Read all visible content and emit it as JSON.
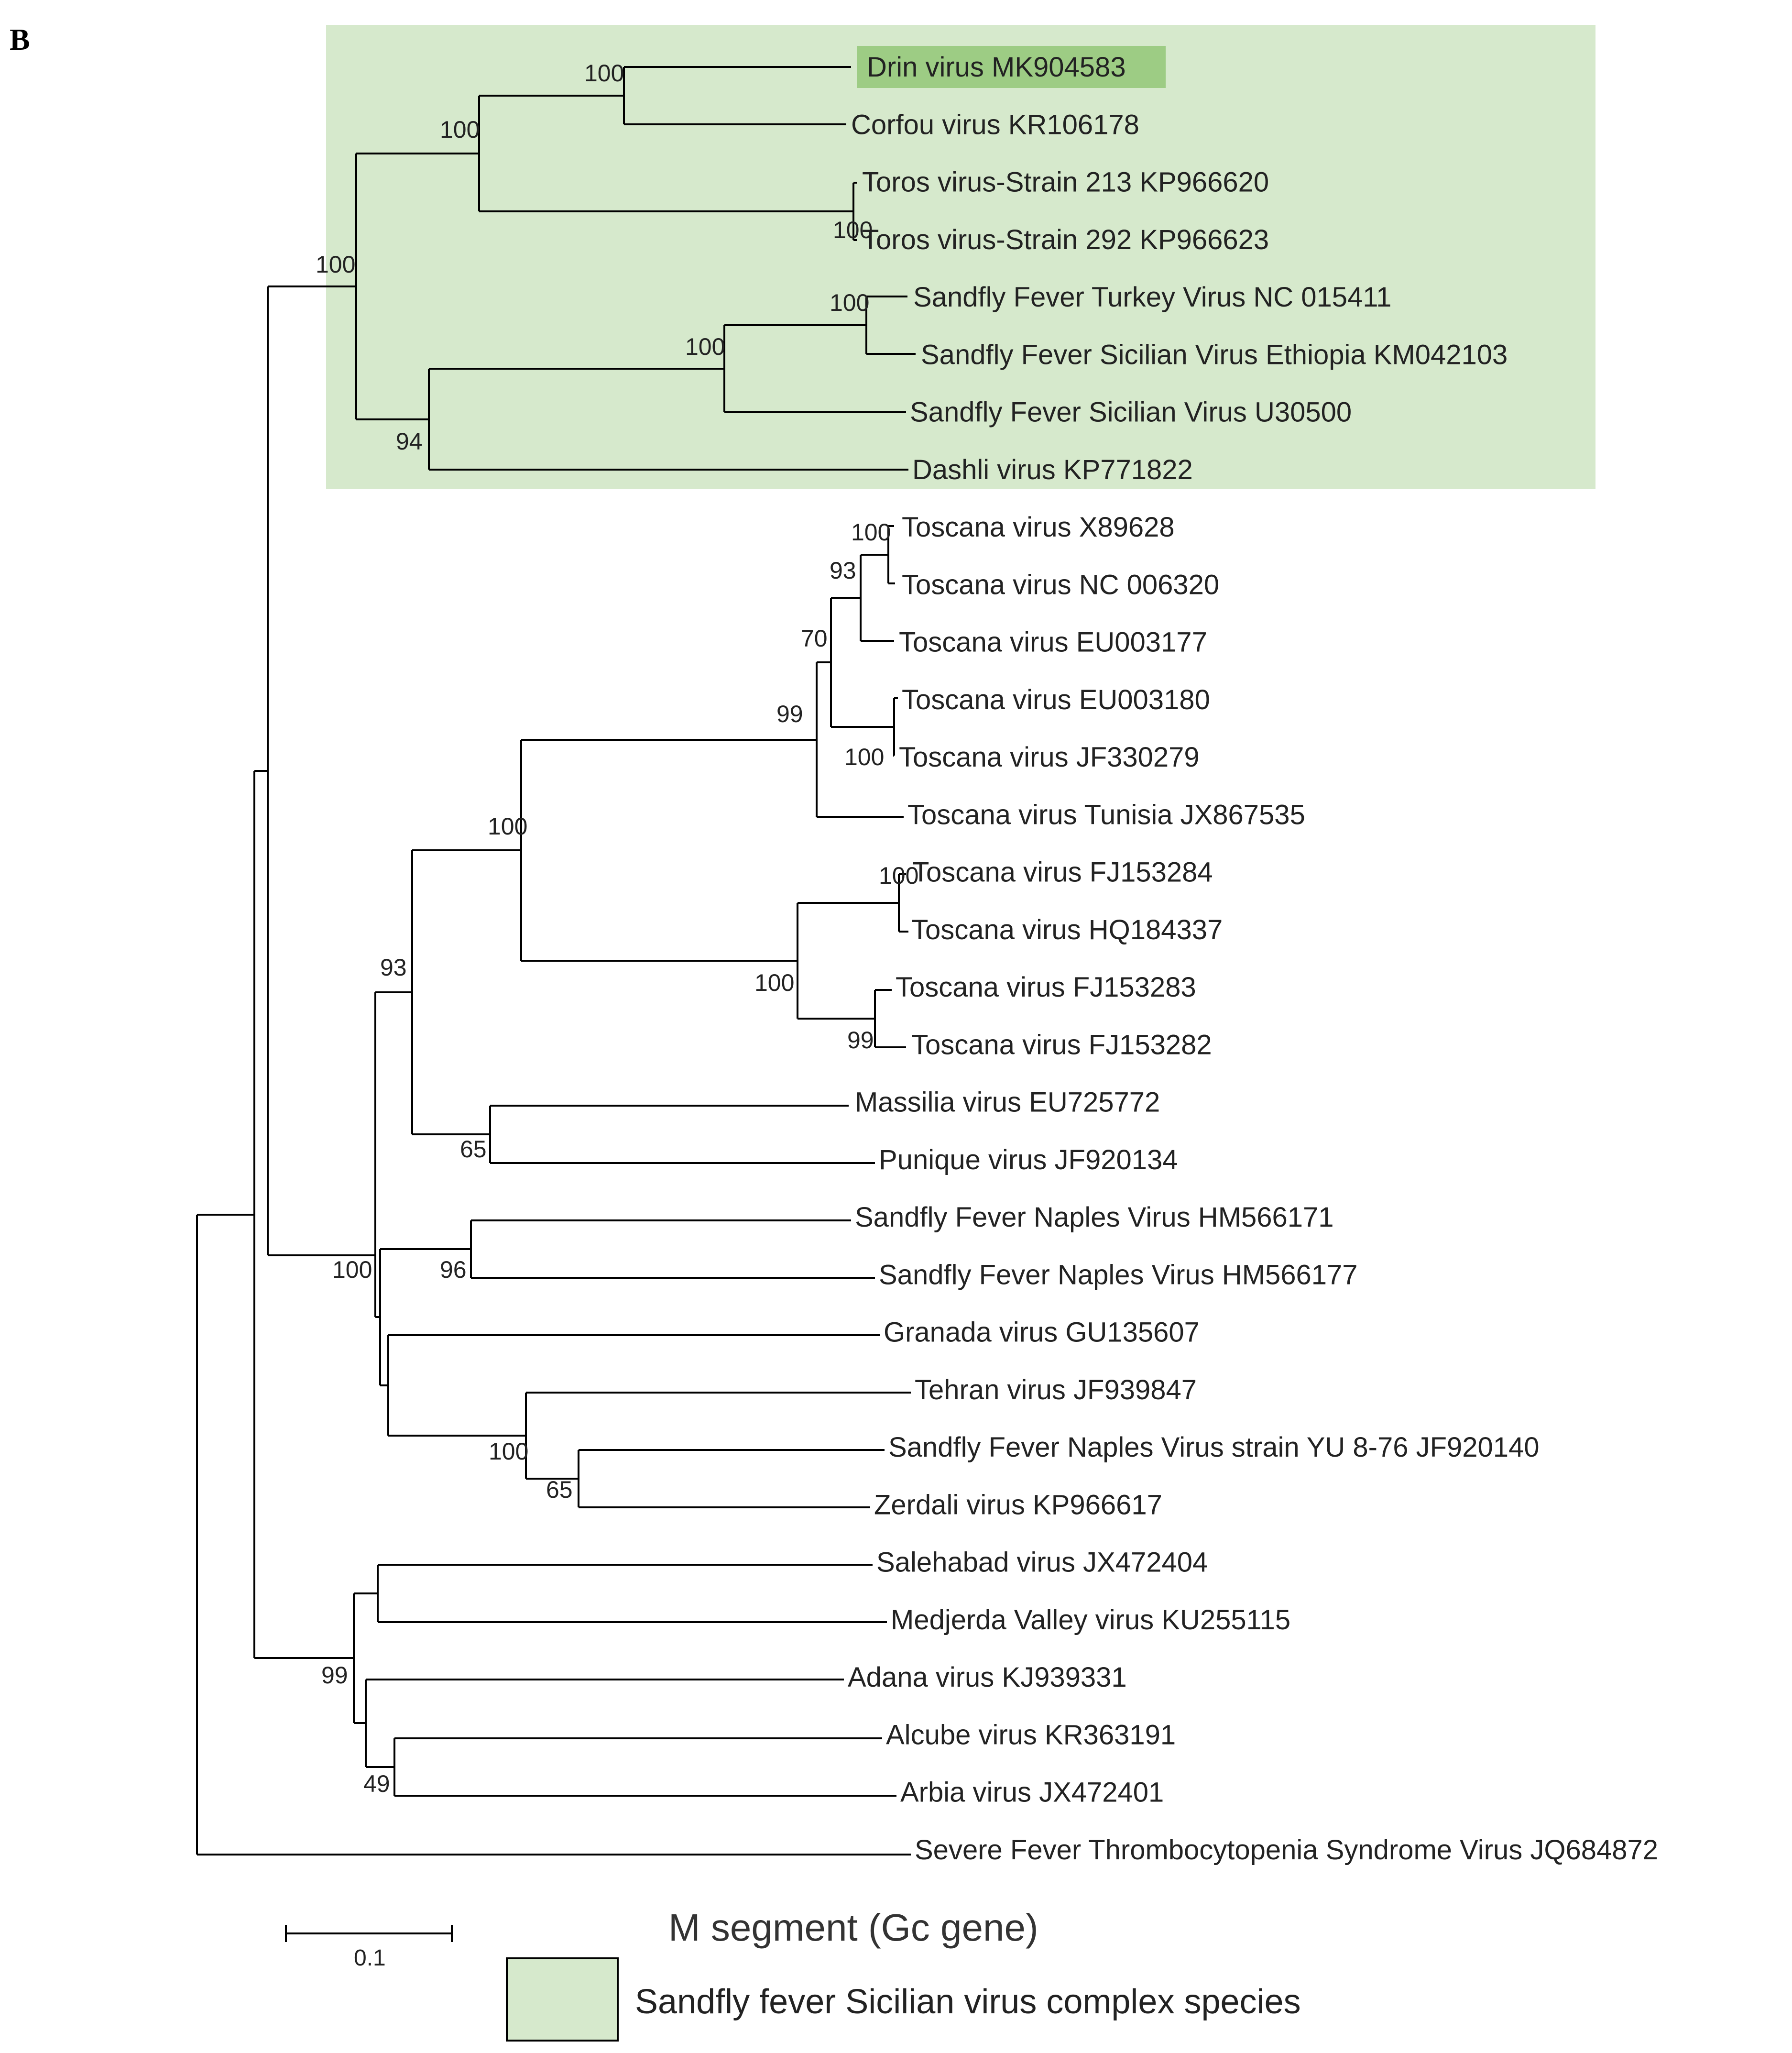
{
  "panel_letter": "B",
  "caption": "M segment (Gc gene)",
  "scale_bar": {
    "value": 0.1,
    "label": "0.1"
  },
  "legend": {
    "label": "Sandfly fever Sicilian virus complex species",
    "color": "#d6e9cc"
  },
  "colors": {
    "highlight_region": "#d6e9cc",
    "highlight_leaf": "#9dcc84",
    "branch": "#000000"
  },
  "leaves": [
    "Drin virus MK904583",
    "Corfou virus KR106178",
    "Toros virus-Strain 213 KP966620",
    "Toros virus-Strain 292 KP966623",
    "Sandfly Fever Turkey Virus NC 015411",
    "Sandfly Fever Sicilian Virus Ethiopia KM042103",
    "Sandfly Fever Sicilian Virus U30500",
    "Dashli virus KP771822",
    "Toscana virus X89628",
    "Toscana virus NC 006320",
    "Toscana virus EU003177",
    "Toscana virus EU003180",
    "Toscana virus JF330279",
    "Toscana virus Tunisia JX867535",
    "Toscana virus FJ153284",
    "Toscana virus HQ184337",
    "Toscana virus FJ153283",
    "Toscana virus FJ153282",
    "Massilia virus EU725772",
    "Punique virus JF920134",
    "Sandfly Fever Naples Virus HM566171",
    "Sandfly Fever Naples Virus HM566177",
    "Granada virus GU135607",
    "Tehran virus JF939847",
    "Sandfly Fever Naples Virus strain YU 8-76 JF920140",
    "Zerdali virus KP966617",
    "Salehabad virus JX472404",
    "Medjerda Valley virus KU255115",
    "Adana virus KJ939331",
    "Alcube virus KR363191",
    "Arbia virus JX472401",
    "Severe Fever Thrombocytopenia Syndrome Virus JQ684872"
  ],
  "bootstrap_values": [
    "100",
    "100",
    "100",
    "100",
    "100",
    "100",
    "94",
    "100",
    "93",
    "70",
    "99",
    "100",
    "100",
    "100",
    "100",
    "99",
    "93",
    "65",
    "96",
    "100",
    "65",
    "100",
    "99",
    "49"
  ],
  "highlighted_clade": "Sandfly fever Sicilian virus complex species",
  "highlighted_leaf": "Drin virus MK904583"
}
